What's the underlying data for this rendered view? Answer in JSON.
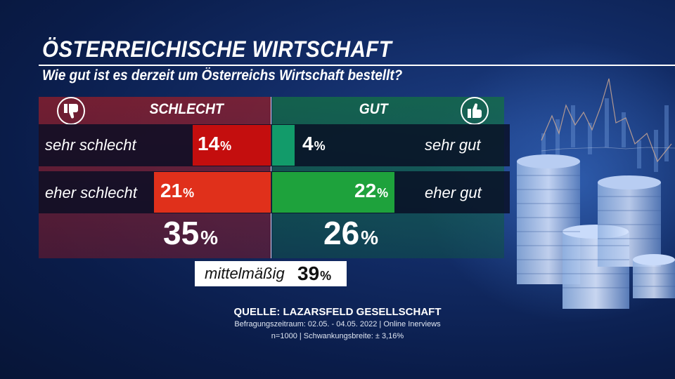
{
  "header": {
    "title": "ÖSTERREICHISCHE WIRTSCHAFT",
    "subtitle": "Wie gut ist es  derzeit um Österreichs Wirtschaft bestellt?"
  },
  "labels": {
    "left_header": "SCHLECHT",
    "right_header": "GUT",
    "percent_sign": "%"
  },
  "icons": {
    "left": "thumbs-down-icon",
    "right": "thumbs-up-icon"
  },
  "colors": {
    "sehr_schlecht": "#c40e0e",
    "eher_schlecht": "#e0301b",
    "sehr_gut": "#129b6a",
    "eher_gut": "#1ea23c"
  },
  "chart_data": {
    "type": "bar",
    "title": "ÖSTERREICHISCHE WIRTSCHAFT",
    "subtitle": "Wie gut ist es  derzeit um Österreichs Wirtschaft bestellt?",
    "negative": {
      "name": "SCHLECHT",
      "items": [
        {
          "label": "sehr schlecht",
          "value": 14
        },
        {
          "label": "eher schlecht",
          "value": 21
        }
      ],
      "total": 35
    },
    "positive": {
      "name": "GUT",
      "items": [
        {
          "label": "sehr gut",
          "value": 4
        },
        {
          "label": "eher gut",
          "value": 22
        }
      ],
      "total": 26
    },
    "neutral": {
      "label": "mittelmäßig",
      "value": 39
    },
    "unit": "%"
  },
  "source": {
    "line1": "QUELLE:  LAZARSFELD GESELLSCHAFT",
    "line2": "Befragungszeitraum: 02.05. - 04.05. 2022 | Online Inerviews",
    "line3": "n=1000 |  Schwankungsbreite: ± 3,16%"
  }
}
